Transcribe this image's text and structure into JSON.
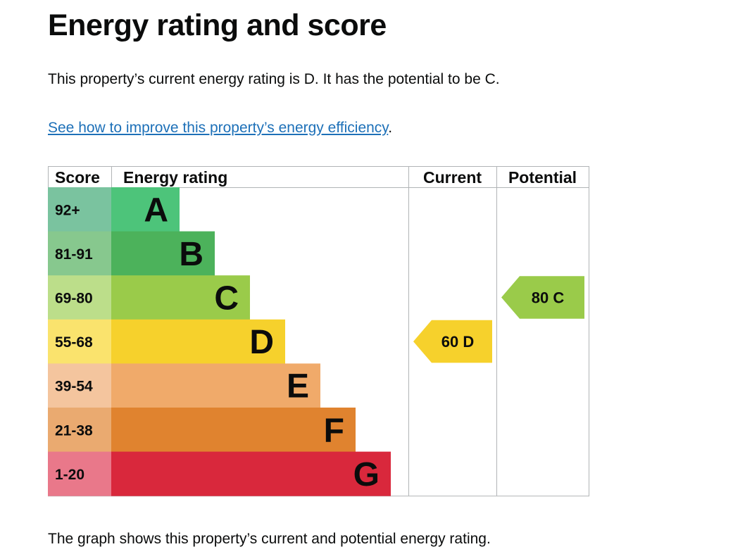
{
  "heading": "Energy rating and score",
  "intro": "This property’s current energy rating is D. It has the potential to be C.",
  "link": {
    "text": "See how to improve this property’s energy efficiency",
    "suffix": "."
  },
  "footer": "The graph shows this property’s current and potential energy rating.",
  "chart_data": {
    "type": "bar",
    "columns": [
      "Score",
      "Energy rating",
      "Current",
      "Potential"
    ],
    "bands": [
      {
        "score": "92+",
        "letter": "A",
        "bar_color": "#4dc47a",
        "score_color": "#7ac39f"
      },
      {
        "score": "81-91",
        "letter": "B",
        "bar_color": "#4cb25b",
        "score_color": "#87c88e"
      },
      {
        "score": "69-80",
        "letter": "C",
        "bar_color": "#9acb4a",
        "score_color": "#bcde8a"
      },
      {
        "score": "55-68",
        "letter": "D",
        "bar_color": "#f6d12c",
        "score_color": "#fae36d"
      },
      {
        "score": "39-54",
        "letter": "E",
        "bar_color": "#f0aa6a",
        "score_color": "#f4c59e"
      },
      {
        "score": "21-38",
        "letter": "F",
        "bar_color": "#e0832f",
        "score_color": "#eaaa70"
      },
      {
        "score": "1-20",
        "letter": "G",
        "bar_color": "#d9283c",
        "score_color": "#e9788a"
      }
    ],
    "current": {
      "score": 60,
      "band": "D",
      "label": "60 D",
      "color": "#f6d12c"
    },
    "potential": {
      "score": 80,
      "band": "C",
      "label": "80 C",
      "color": "#9acb4a"
    }
  }
}
